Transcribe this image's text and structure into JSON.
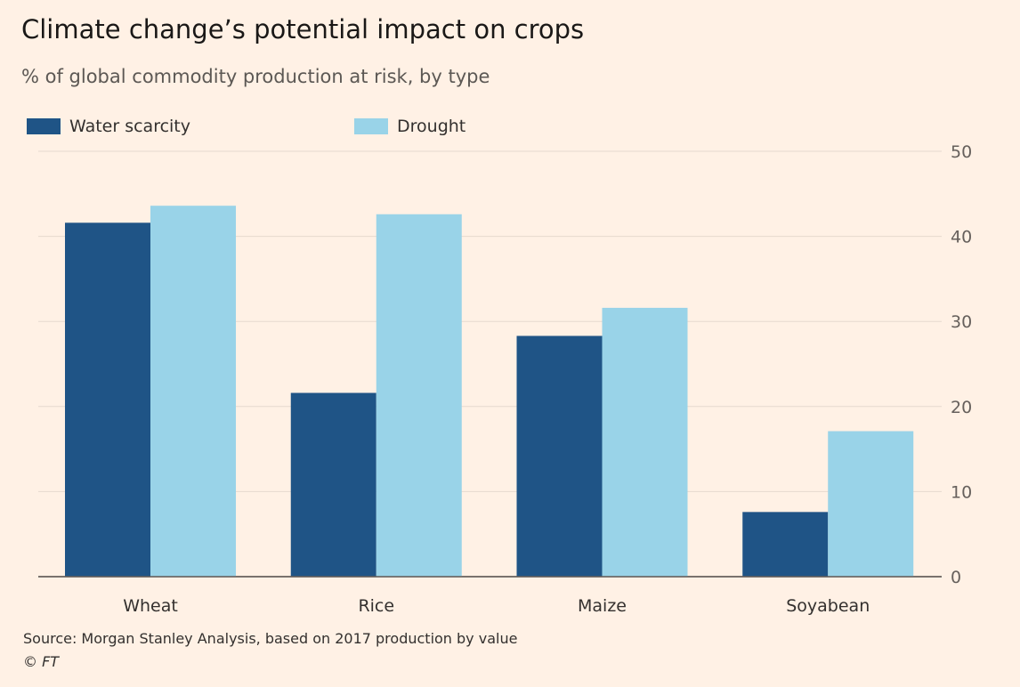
{
  "chart_data": {
    "type": "bar",
    "title": "Climate change’s potential impact on crops",
    "subtitle": "% of global commodity production at risk, by type",
    "categories": [
      "Wheat",
      "Rice",
      "Maize",
      "Soyabean"
    ],
    "series": [
      {
        "name": "Water scarcity",
        "values": [
          41.6,
          21.6,
          28.3,
          7.6
        ],
        "color": "#1f5486"
      },
      {
        "name": "Drought",
        "values": [
          43.6,
          42.6,
          31.6,
          17.1
        ],
        "color": "#99d3e8"
      }
    ],
    "ylim": [
      0,
      50
    ],
    "yticks": [
      "0",
      "10",
      "20",
      "30",
      "40",
      "50"
    ],
    "ytick_values": [
      0,
      10,
      20,
      30,
      40,
      50
    ],
    "y_axis_side": "right",
    "grid": true,
    "legend_position": "top-left",
    "source": "Source: Morgan Stanley Analysis, based on 2017 production by value",
    "copyright": "© FT"
  }
}
